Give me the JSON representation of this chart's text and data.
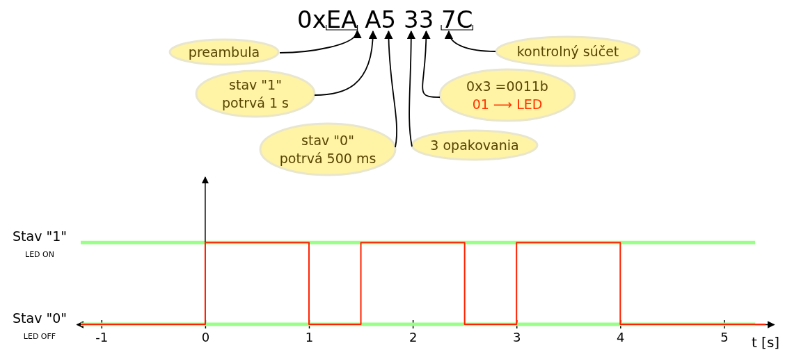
{
  "chart_data": {
    "type": "step",
    "title": "0xEA A5 33 7C",
    "xlabel": "t [s]",
    "x": [
      -1.2,
      0,
      1,
      1.5,
      2.5,
      3,
      4,
      5.4
    ],
    "series": [
      {
        "color": "#ff2200",
        "values": [
          0,
          1,
          0,
          1,
          0,
          1,
          0,
          0
        ]
      }
    ],
    "xlim": [
      -1.24,
      5.48
    ],
    "ylim": [
      0,
      1.8
    ],
    "xticks": [
      -1,
      0,
      1,
      2,
      3,
      4,
      5
    ],
    "yticks": [
      {
        "value": 0,
        "label": "Stav \"0\"$_{LED OFF}$"
      },
      {
        "value": 1,
        "label": "Stav \"1\"$_{LED ON}$"
      }
    ],
    "ref_lines": [
      {
        "axis": "y",
        "value": 1,
        "color": "#99ff88"
      },
      {
        "axis": "y",
        "value": 0,
        "color": "#99ff88"
      }
    ],
    "annotations": [
      "preambula",
      "stav \"1\"\npotrvá 1 s",
      "stav \"0\"\npotrvá 500 ms",
      "3 opakovania",
      "0x3 =0011b\n01 ⟶ LED",
      "kontrolný súčet"
    ],
    "grid": false,
    "line_style": "solid",
    "marker": "none"
  }
}
